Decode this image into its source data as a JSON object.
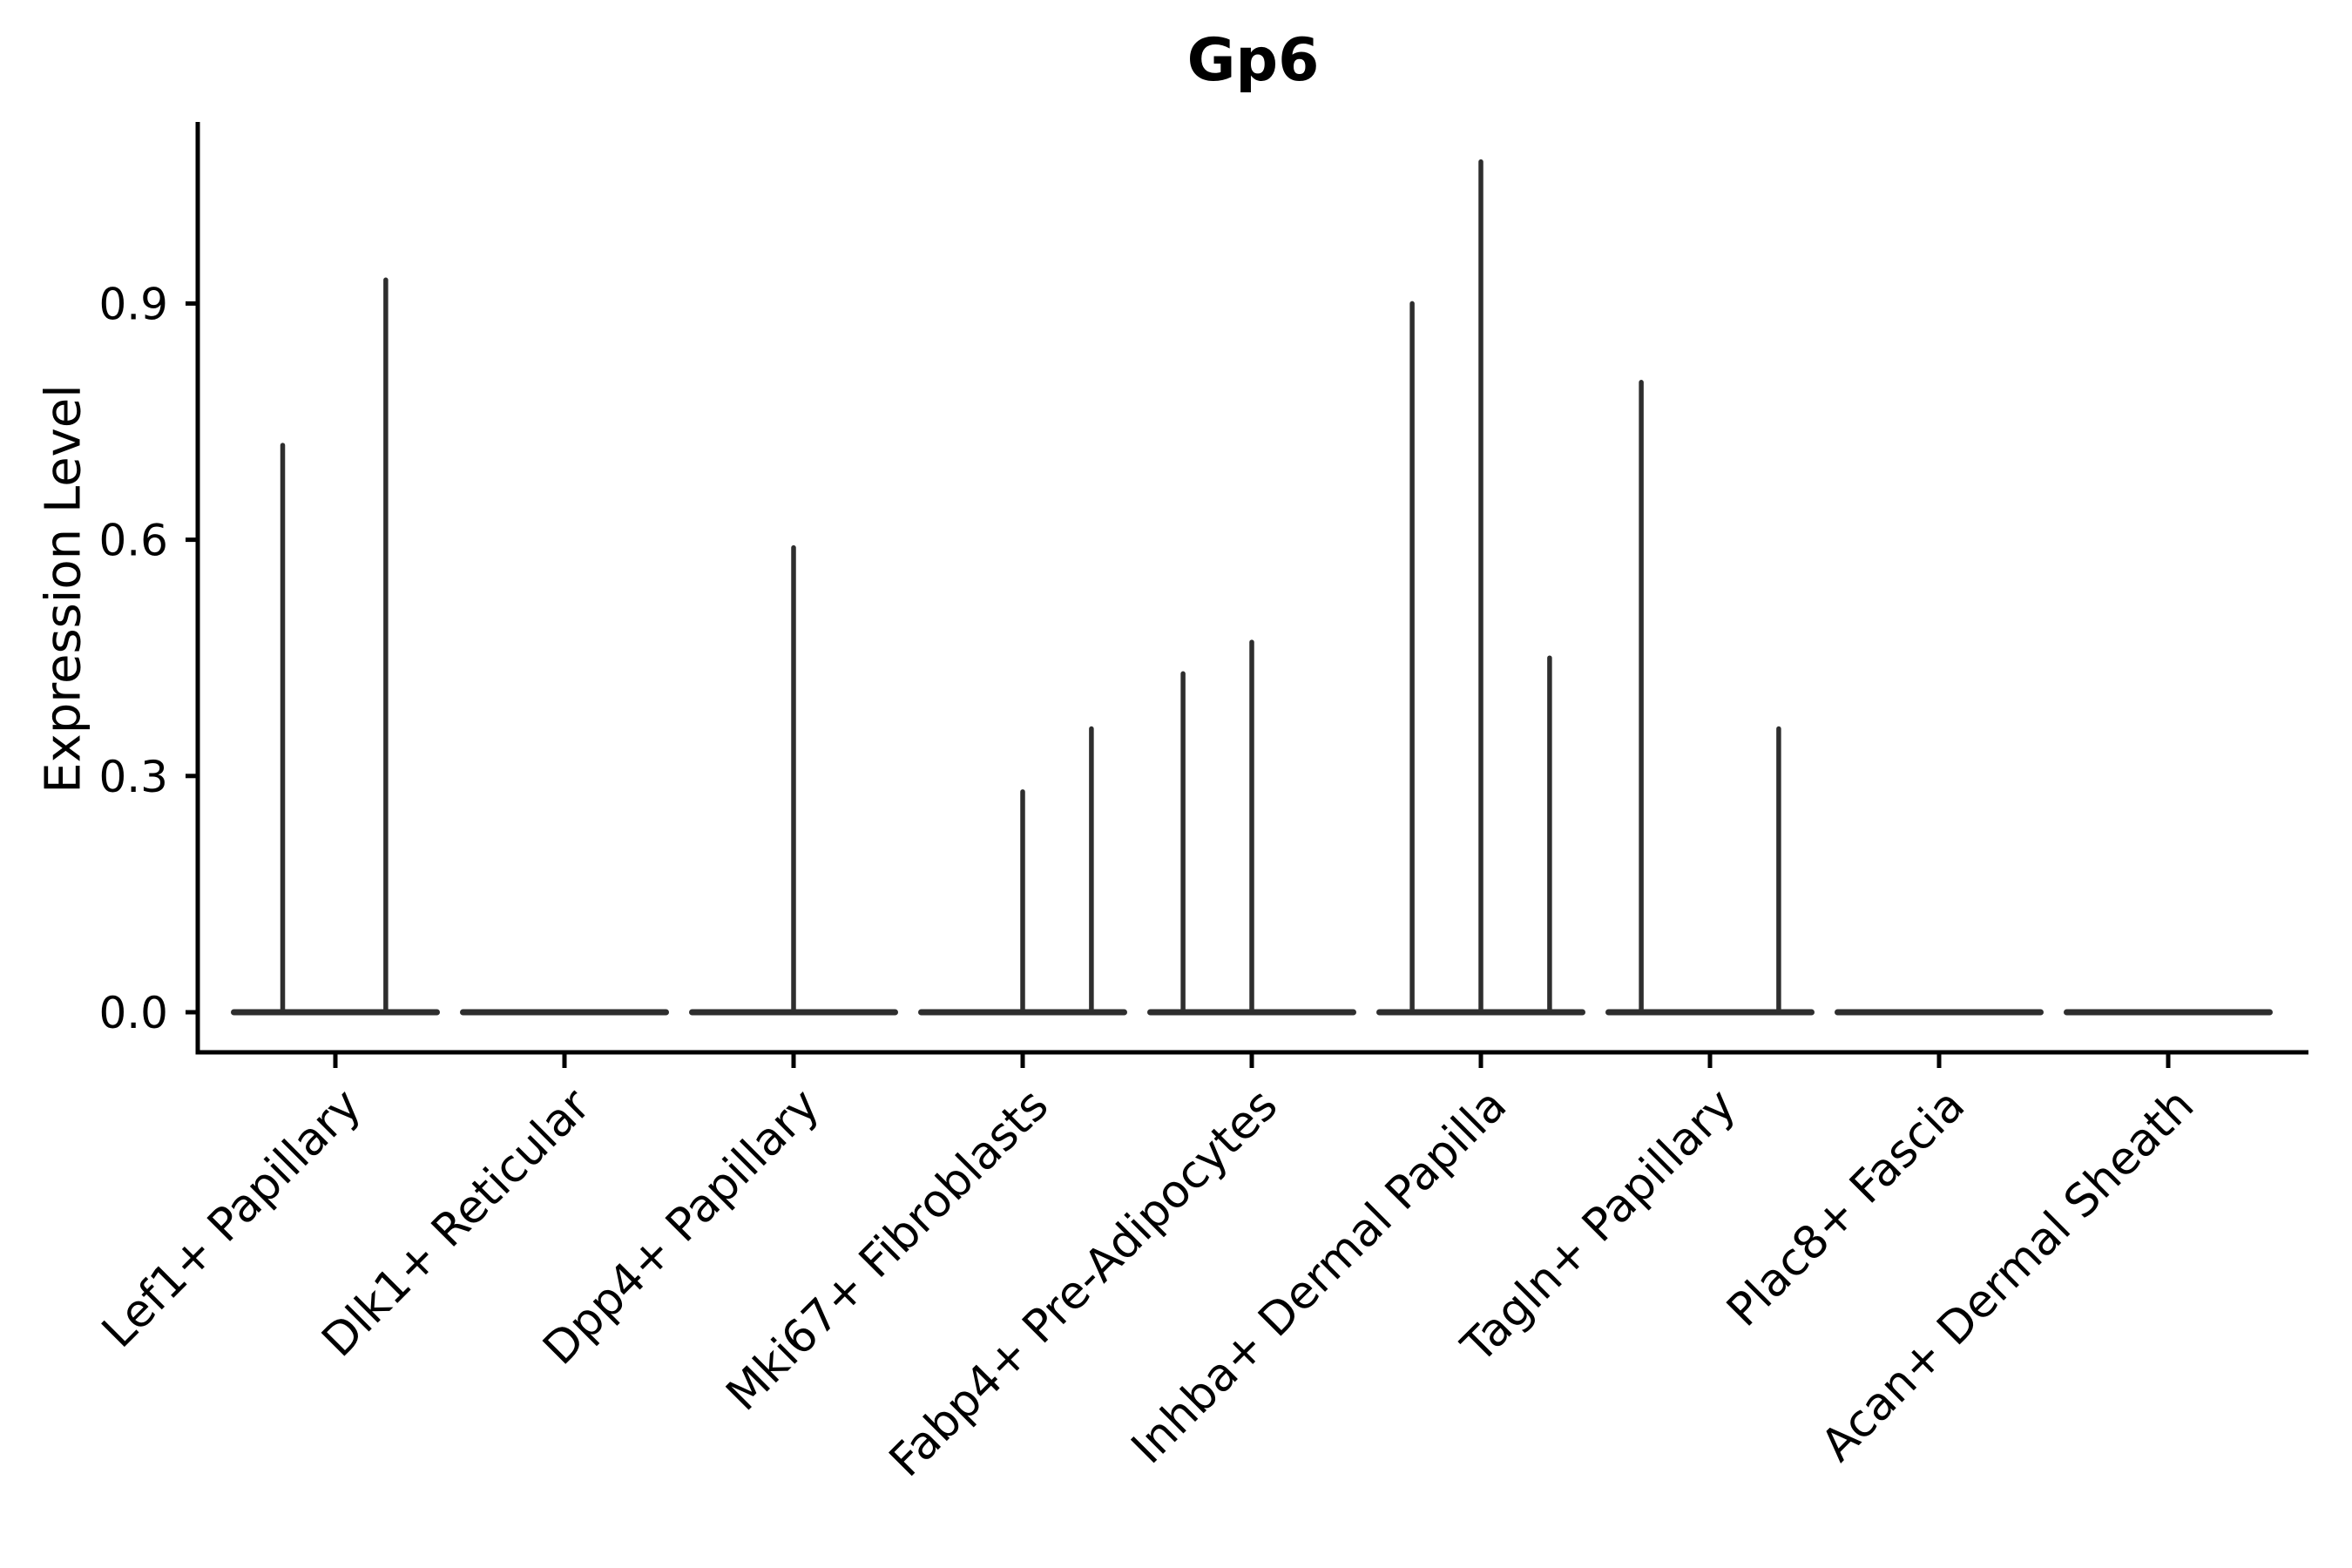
{
  "chart_data": {
    "type": "violin",
    "title": "Gp6",
    "ylabel": "Expression Level",
    "xlabel": "",
    "ylim": [
      -0.05,
      1.13
    ],
    "grid": false,
    "legend": "none",
    "yticks": [
      {
        "value": 0.0,
        "label": "0.0"
      },
      {
        "value": 0.3,
        "label": "0.3"
      },
      {
        "value": 0.6,
        "label": "0.6"
      },
      {
        "value": 0.9,
        "label": "0.9"
      }
    ],
    "colors": {
      "violin": "#2e2e2e",
      "axis": "#000000",
      "text": "#000000",
      "background": "#ffffff"
    },
    "baseline_value": 0.0,
    "categories": [
      {
        "label": "Lef1+ Papillary",
        "violins": [
          {
            "dx": -0.23,
            "max": 0.72
          },
          {
            "dx": 0.22,
            "max": 0.93
          }
        ]
      },
      {
        "label": "Dlk1+ Reticular",
        "violins": []
      },
      {
        "label": "Dpp4+ Papillary",
        "violins": [
          {
            "dx": 0,
            "max": 0.59
          }
        ]
      },
      {
        "label": "Mki67+ Fibroblasts",
        "violins": [
          {
            "dx": 0,
            "max": 0.28
          },
          {
            "dx": 0.3,
            "max": 0.36
          }
        ]
      },
      {
        "label": "Fabp4+ Pre-Adipocytes",
        "violins": [
          {
            "dx": -0.3,
            "max": 0.43
          },
          {
            "dx": 0,
            "max": 0.47
          }
        ]
      },
      {
        "label": "Inhba+ Dermal Papilla",
        "violins": [
          {
            "dx": -0.3,
            "max": 0.9
          },
          {
            "dx": 0,
            "max": 1.08
          },
          {
            "dx": 0.3,
            "max": 0.45
          }
        ]
      },
      {
        "label": "Tagln+ Papillary",
        "violins": [
          {
            "dx": -0.3,
            "max": 0.8
          },
          {
            "dx": 0.3,
            "max": 0.36
          }
        ]
      },
      {
        "label": "Plac8+ Fascia",
        "violins": []
      },
      {
        "label": "Acan+ Dermal Sheath",
        "violins": []
      }
    ]
  }
}
